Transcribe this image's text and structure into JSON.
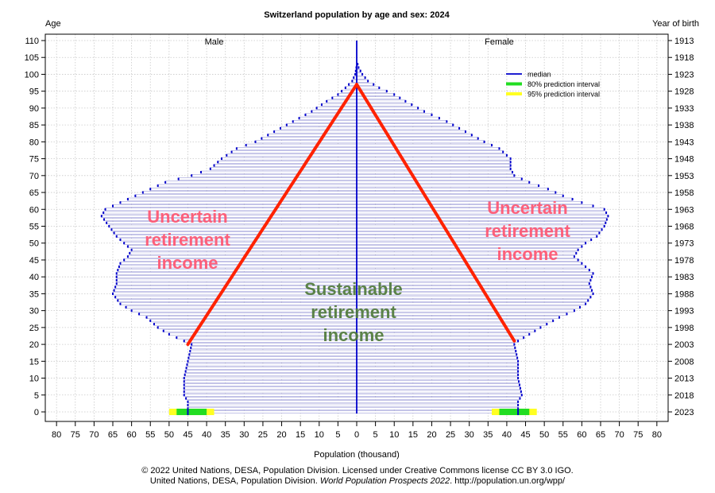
{
  "chart_data": {
    "type": "bar",
    "title": "Switzerland population by age and sex: 2024",
    "left_axis_title": "Age",
    "right_axis_title": "Year of birth",
    "xlabel": "Population (thousand)",
    "male_label": "Male",
    "female_label": "Female",
    "xlim": [
      -80,
      80
    ],
    "ylim": [
      0,
      110
    ],
    "x_ticks": [
      80,
      75,
      70,
      65,
      60,
      55,
      50,
      45,
      40,
      35,
      30,
      25,
      20,
      15,
      10,
      5,
      0,
      5,
      10,
      15,
      20,
      25,
      30,
      35,
      40,
      45,
      50,
      55,
      60,
      65,
      70,
      75,
      80
    ],
    "age_ticks": [
      0,
      5,
      10,
      15,
      20,
      25,
      30,
      35,
      40,
      45,
      50,
      55,
      60,
      65,
      70,
      75,
      80,
      85,
      90,
      95,
      100,
      105,
      110
    ],
    "birth_year_ticks": [
      "2023",
      "2018",
      "2013",
      "2008",
      "2003",
      "1998",
      "1993",
      "1988",
      "1983",
      "1978",
      "1973",
      "1968",
      "1963",
      "1958",
      "1953",
      "1948",
      "1943",
      "1938",
      "1933",
      "1928",
      "1923",
      "1918",
      "1913"
    ],
    "grid": true,
    "legend_position": "top-right",
    "legend": [
      {
        "label": "median",
        "color": "#0000cc"
      },
      {
        "label": "80% prediction interval",
        "color": "#22dd22"
      },
      {
        "label": "95% prediction interval",
        "color": "#ffff22"
      }
    ],
    "male_anchors": [
      [
        0,
        45
      ],
      [
        3,
        45
      ],
      [
        5,
        46
      ],
      [
        10,
        46
      ],
      [
        15,
        45
      ],
      [
        20,
        44
      ],
      [
        21,
        46
      ],
      [
        23,
        50
      ],
      [
        25,
        53
      ],
      [
        28,
        56
      ],
      [
        30,
        60
      ],
      [
        32,
        63
      ],
      [
        35,
        65
      ],
      [
        38,
        64
      ],
      [
        41,
        64
      ],
      [
        44,
        63
      ],
      [
        46,
        61
      ],
      [
        48,
        60
      ],
      [
        50,
        62
      ],
      [
        52,
        64
      ],
      [
        55,
        66
      ],
      [
        58,
        68
      ],
      [
        60,
        67
      ],
      [
        62,
        63
      ],
      [
        64,
        59
      ],
      [
        66,
        55
      ],
      [
        68,
        51
      ],
      [
        70,
        44
      ],
      [
        72,
        39
      ],
      [
        75,
        36
      ],
      [
        78,
        32
      ],
      [
        80,
        27
      ],
      [
        83,
        22
      ],
      [
        86,
        17
      ],
      [
        89,
        12
      ],
      [
        92,
        8
      ],
      [
        94,
        5
      ],
      [
        96,
        3
      ],
      [
        98,
        1.2
      ],
      [
        100,
        0.4
      ],
      [
        102,
        0.1
      ],
      [
        104,
        0
      ]
    ],
    "female_anchors": [
      [
        0,
        43
      ],
      [
        3,
        43
      ],
      [
        5,
        44
      ],
      [
        10,
        43
      ],
      [
        15,
        43
      ],
      [
        20,
        42
      ],
      [
        21,
        43
      ],
      [
        23,
        46
      ],
      [
        25,
        49
      ],
      [
        28,
        54
      ],
      [
        30,
        58
      ],
      [
        32,
        61
      ],
      [
        35,
        63
      ],
      [
        38,
        62
      ],
      [
        41,
        63
      ],
      [
        44,
        60
      ],
      [
        46,
        58
      ],
      [
        48,
        59
      ],
      [
        50,
        61
      ],
      [
        52,
        64
      ],
      [
        55,
        66
      ],
      [
        58,
        67
      ],
      [
        60,
        66
      ],
      [
        62,
        60
      ],
      [
        64,
        55
      ],
      [
        66,
        51
      ],
      [
        68,
        46
      ],
      [
        70,
        42
      ],
      [
        72,
        41
      ],
      [
        75,
        41
      ],
      [
        78,
        38
      ],
      [
        80,
        34
      ],
      [
        83,
        29
      ],
      [
        86,
        24
      ],
      [
        89,
        18
      ],
      [
        92,
        13
      ],
      [
        94,
        10
      ],
      [
        96,
        6
      ],
      [
        98,
        3
      ],
      [
        100,
        1.5
      ],
      [
        102,
        0.5
      ],
      [
        104,
        0
      ]
    ],
    "age0_intervals": {
      "male": {
        "p95": [
          38,
          50
        ],
        "p80": [
          40,
          48
        ]
      },
      "female": {
        "p95": [
          36,
          48
        ],
        "p80": [
          38,
          46
        ]
      }
    },
    "annotations": {
      "left": "Uncertain\nretirement\nincome",
      "right": "Uncertain\nretirement\nincome",
      "center": "Sustainable\nretirement\nincome",
      "triangle": {
        "apex": [
          0,
          97
        ],
        "left_base": [
          -45,
          20
        ],
        "right_base": [
          42,
          21
        ]
      }
    }
  },
  "footer": {
    "line1": "© 2022 United Nations, DESA, Population Division. Licensed under Creative Commons license CC BY 3.0 IGO.",
    "line2_prefix": "United Nations, DESA, Population Division. ",
    "line2_italic": "World Population Prospects 2022",
    "line2_suffix": ". http://population.un.org/wpp/"
  }
}
